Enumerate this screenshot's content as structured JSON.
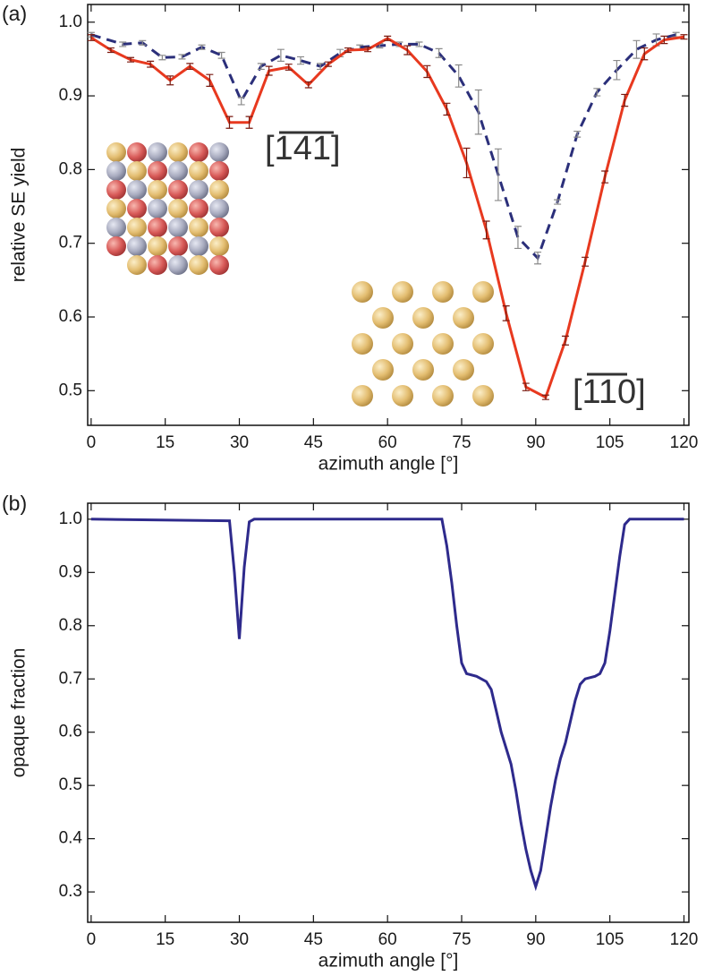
{
  "chart_data": [
    {
      "type": "line",
      "panel_label": "(a)",
      "xlabel": "azimuth angle [°]",
      "ylabel": "relative SE yield",
      "xlim": [
        -0.7,
        121
      ],
      "ylim": [
        0.453,
        1.024
      ],
      "xticks": [
        0,
        15,
        30,
        45,
        60,
        75,
        90,
        105,
        120
      ],
      "yticks": [
        {
          "value": 0.5,
          "label": "0.5"
        },
        {
          "value": 0.6,
          "label": "0.6"
        },
        {
          "value": 0.7,
          "label": "0.7"
        },
        {
          "value": 0.8,
          "label": "0.8"
        },
        {
          "value": 0.9,
          "label": "0.9"
        },
        {
          "value": 1.0,
          "label": "1.0"
        }
      ],
      "annotations": [
        "[141]",
        "[110]"
      ],
      "series": [
        {
          "color": "#2b2f7a",
          "dashed": true,
          "error_color": "#8a8a8a",
          "x": [
            0,
            6.4,
            10.4,
            14.4,
            18.4,
            22.4,
            26.4,
            30.4,
            34.4,
            38.4,
            42.4,
            46.4,
            50.4,
            54.4,
            58.4,
            62.4,
            66.4,
            70.4,
            74.4,
            78.4,
            82.4,
            86.4,
            90.4,
            94.4,
            98.4,
            102.4,
            106.4,
            110.4,
            114.4,
            118.4
          ],
          "values": [
            0.983,
            0.97,
            0.972,
            0.952,
            0.953,
            0.966,
            0.955,
            0.893,
            0.94,
            0.955,
            0.948,
            0.94,
            0.958,
            0.966,
            0.968,
            0.97,
            0.97,
            0.958,
            0.927,
            0.878,
            0.793,
            0.708,
            0.68,
            0.756,
            0.848,
            0.905,
            0.935,
            0.963,
            0.976,
            0.983
          ],
          "errors": [
            0.003,
            0.003,
            0.003,
            0.003,
            0.003,
            0.003,
            0.004,
            0.005,
            0.004,
            0.008,
            0.005,
            0.004,
            0.005,
            0.003,
            0.003,
            0.003,
            0.003,
            0.006,
            0.015,
            0.03,
            0.035,
            0.015,
            0.008,
            0.003,
            0.004,
            0.005,
            0.013,
            0.012,
            0.008,
            0.003
          ]
        },
        {
          "color": "#e8391f",
          "dashed": false,
          "error_color": "#7a1a10",
          "x": [
            0,
            4,
            8,
            12,
            16,
            20,
            24,
            28,
            32,
            36,
            40,
            44,
            48,
            52,
            56,
            60,
            64,
            68,
            72,
            76,
            80,
            84,
            88,
            92,
            96,
            100,
            104,
            108,
            112,
            116,
            120
          ],
          "values": [
            0.979,
            0.962,
            0.949,
            0.943,
            0.921,
            0.94,
            0.921,
            0.864,
            0.864,
            0.934,
            0.939,
            0.915,
            0.943,
            0.962,
            0.963,
            0.978,
            0.962,
            0.933,
            0.882,
            0.809,
            0.718,
            0.605,
            0.505,
            0.491,
            0.568,
            0.675,
            0.79,
            0.894,
            0.957,
            0.976,
            0.98
          ],
          "errors": [
            0.004,
            0.003,
            0.003,
            0.004,
            0.006,
            0.004,
            0.008,
            0.008,
            0.008,
            0.006,
            0.004,
            0.004,
            0.003,
            0.003,
            0.003,
            0.003,
            0.006,
            0.008,
            0.008,
            0.02,
            0.012,
            0.01,
            0.005,
            0.003,
            0.006,
            0.006,
            0.008,
            0.008,
            0.008,
            0.005,
            0.003
          ]
        }
      ]
    },
    {
      "type": "line",
      "panel_label": "(b)",
      "xlabel": "azimuth angle [°]",
      "ylabel": "opaque fraction",
      "xlim": [
        -0.7,
        121
      ],
      "ylim": [
        0.243,
        1.03
      ],
      "xticks": [
        0,
        15,
        30,
        45,
        60,
        75,
        90,
        105,
        120
      ],
      "yticks": [
        {
          "value": 0.3,
          "label": "0.3"
        },
        {
          "value": 0.4,
          "label": "0.4"
        },
        {
          "value": 0.5,
          "label": "0.5"
        },
        {
          "value": 0.6,
          "label": "0.6"
        },
        {
          "value": 0.7,
          "label": "0.7"
        },
        {
          "value": 0.8,
          "label": "0.8"
        },
        {
          "value": 0.9,
          "label": "0.9"
        },
        {
          "value": 1.0,
          "label": "1.0"
        }
      ],
      "series": [
        {
          "color": "#2e2a8c",
          "dashed": false,
          "x": [
            0,
            28,
            29,
            30,
            31,
            32,
            33,
            71,
            72,
            73,
            74,
            75,
            76,
            78,
            80,
            81,
            82,
            83,
            84,
            85,
            86,
            87,
            88,
            89,
            90,
            91,
            92,
            93,
            94,
            95,
            96,
            97,
            98,
            99,
            100,
            102,
            103,
            104,
            105,
            106,
            107,
            108,
            109,
            120
          ],
          "values": [
            1.0,
            0.997,
            0.9,
            0.775,
            0.91,
            0.995,
            1.0,
            1.0,
            0.95,
            0.88,
            0.8,
            0.73,
            0.71,
            0.705,
            0.695,
            0.68,
            0.64,
            0.6,
            0.57,
            0.54,
            0.49,
            0.43,
            0.38,
            0.34,
            0.31,
            0.34,
            0.4,
            0.46,
            0.51,
            0.55,
            0.58,
            0.62,
            0.66,
            0.69,
            0.7,
            0.705,
            0.71,
            0.73,
            0.79,
            0.86,
            0.93,
            0.99,
            1.0,
            1.0
          ]
        }
      ]
    }
  ]
}
